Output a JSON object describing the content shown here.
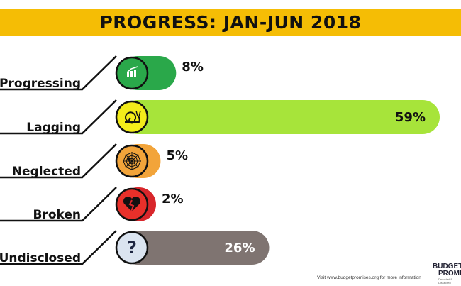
{
  "header": {
    "title": "PROGRESS: JAN-JUN 2018"
  },
  "chart_data": {
    "type": "bar",
    "title": "PROGRESS: JAN-JUN 2018",
    "categories": [
      "Progressing",
      "Lagging",
      "Neglected",
      "Broken",
      "Undisclosed"
    ],
    "values": [
      8,
      59,
      5,
      2,
      26
    ],
    "value_labels": [
      "8%",
      "59%",
      "5%",
      "2%",
      "26%"
    ],
    "unit": "%",
    "colors": [
      "#2aa84a",
      "#a7e43a",
      "#f2a43a",
      "#d8262b",
      "#7f7471"
    ],
    "icons": [
      "growth-chart-icon",
      "snail-icon",
      "spider-web-icon",
      "broken-heart-icon",
      "question-mark-icon"
    ]
  },
  "footer": {
    "note": "Visit www.budgetpromises.org for more information",
    "logo_line1": "BUDGET",
    "logo_line2": "PROMISES",
    "logo_line3": "Decoded & Dissected"
  }
}
